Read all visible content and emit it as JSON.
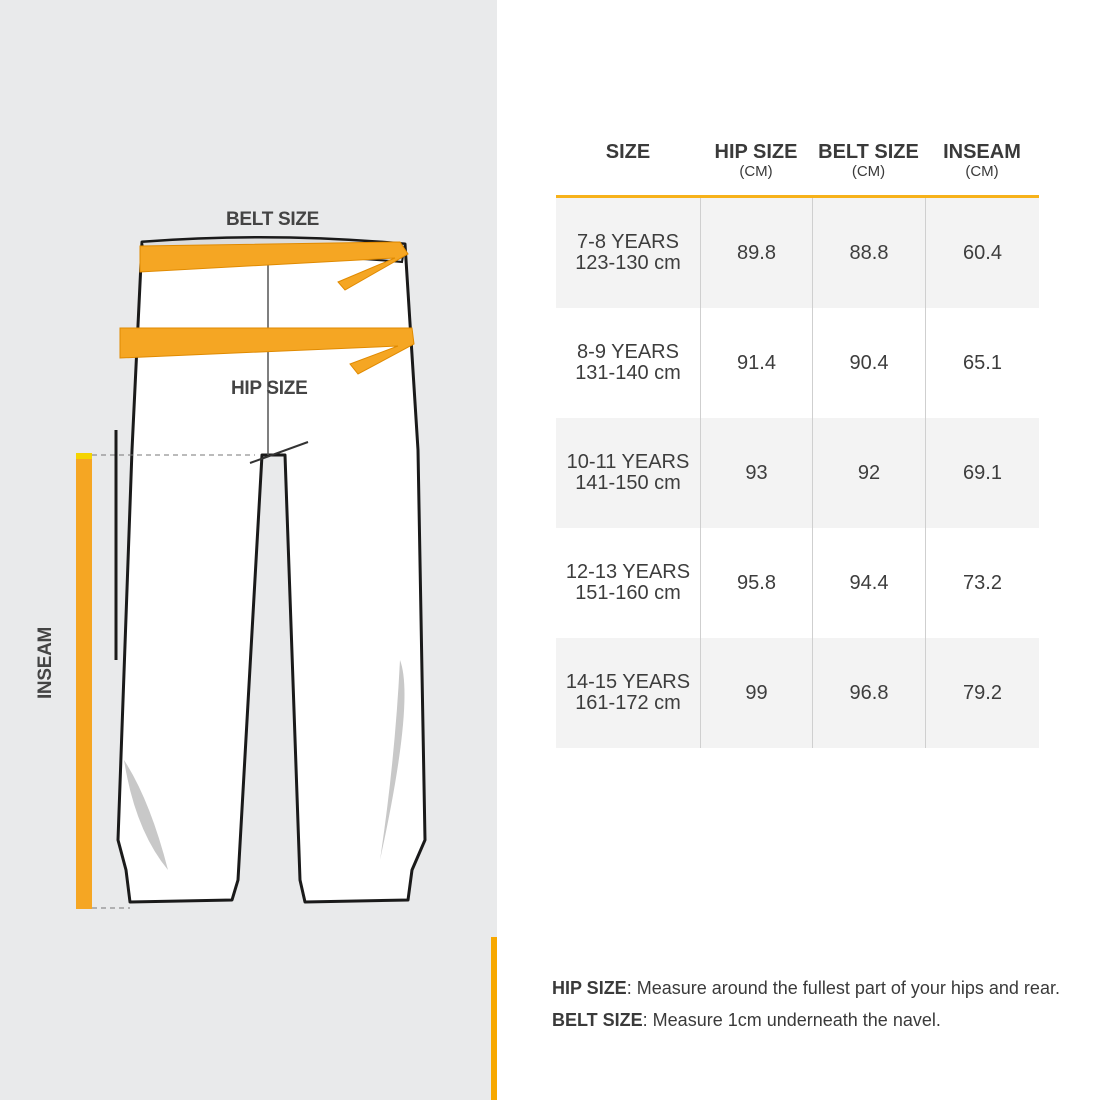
{
  "illustration": {
    "belt_label": "BELT SIZE",
    "hip_label": "HIP SIZE",
    "inseam_label": "INSEAM"
  },
  "table": {
    "headers": [
      {
        "label": "SIZE",
        "unit": ""
      },
      {
        "label": "HIP SIZE",
        "unit": "(CM)"
      },
      {
        "label": "BELT SIZE",
        "unit": "(CM)"
      },
      {
        "label": "INSEAM",
        "unit": "(CM)"
      }
    ],
    "rows": [
      {
        "age": "7-8 YEARS",
        "height": "123-130 cm",
        "hip": "89.8",
        "belt": "88.8",
        "inseam": "60.4"
      },
      {
        "age": "8-9 YEARS",
        "height": "131-140 cm",
        "hip": "91.4",
        "belt": "90.4",
        "inseam": "65.1"
      },
      {
        "age": "10-11 YEARS",
        "height": "141-150 cm",
        "hip": "93",
        "belt": "92",
        "inseam": "69.1"
      },
      {
        "age": "12-13 YEARS",
        "height": "151-160 cm",
        "hip": "95.8",
        "belt": "94.4",
        "inseam": "73.2"
      },
      {
        "age": "14-15 YEARS",
        "height": "161-172 cm",
        "hip": "99",
        "belt": "96.8",
        "inseam": "79.2"
      }
    ]
  },
  "notes": [
    {
      "term": "HIP SIZE",
      "text": ": Measure around the fullest part of your hips and rear."
    },
    {
      "term": "BELT SIZE",
      "text": ": Measure 1cm underneath the navel."
    }
  ],
  "colors": {
    "accent": "#f7a800",
    "panel": "#e9eaeb",
    "row_alt": "#f3f3f3"
  }
}
